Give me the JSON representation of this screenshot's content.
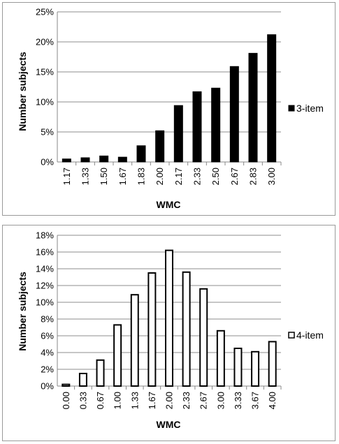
{
  "chart_data": [
    {
      "type": "bar",
      "categories": [
        "1.17",
        "1.33",
        "1.50",
        "1.67",
        "1.83",
        "2.00",
        "2.17",
        "2.33",
        "2.50",
        "2.67",
        "2.83",
        "3.00"
      ],
      "series": [
        {
          "name": "3-item",
          "values": [
            0.5,
            0.7,
            1.0,
            0.8,
            2.7,
            5.2,
            9.4,
            11.7,
            12.3,
            15.9,
            18.1,
            21.2
          ],
          "fill": "#000000"
        }
      ],
      "xlabel": "WMC",
      "ylabel": "Number subjects",
      "yticks": [
        "0%",
        "5%",
        "10%",
        "15%",
        "20%",
        "25%"
      ],
      "ylim": [
        0,
        25
      ],
      "ystep": 5,
      "grid": true,
      "legend": "right"
    },
    {
      "type": "bar",
      "categories": [
        "0.00",
        "0.33",
        "0.67",
        "1.00",
        "1.33",
        "1.67",
        "2.00",
        "2.33",
        "2.67",
        "3.00",
        "3.33",
        "3.67",
        "4.00"
      ],
      "series": [
        {
          "name": "4-item",
          "values": [
            0.2,
            1.5,
            3.1,
            7.3,
            10.9,
            13.5,
            16.2,
            13.6,
            11.6,
            6.6,
            4.5,
            4.1,
            5.3
          ],
          "fill": "#ffffff"
        }
      ],
      "xlabel": "WMC",
      "ylabel": "Number subjects",
      "yticks": [
        "0%",
        "2%",
        "4%",
        "6%",
        "8%",
        "10%",
        "12%",
        "14%",
        "16%",
        "18%"
      ],
      "ylim": [
        0,
        18
      ],
      "ystep": 2,
      "grid": true,
      "legend": "right"
    }
  ]
}
